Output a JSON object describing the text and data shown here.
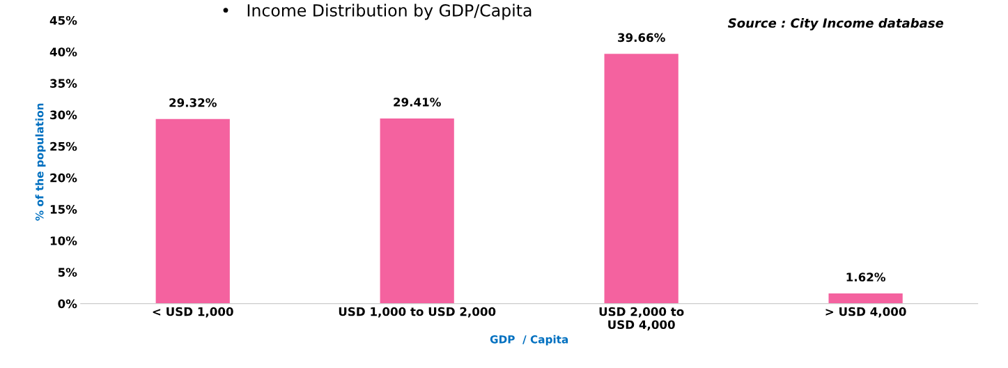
{
  "chart_data": {
    "type": "bar",
    "title": "•   Income Distribution by GDP/Capita",
    "xlabel": "GDP  / Capita",
    "ylabel": "% of the population",
    "categories": [
      "< USD 1,000",
      "USD 1,000 to USD 2,000",
      "USD 2,000 to\nUSD 4,000",
      "> USD 4,000"
    ],
    "values": [
      29.32,
      29.41,
      39.66,
      1.62
    ],
    "value_labels": [
      "29.32%",
      "29.41%",
      "39.66%",
      "1.62%"
    ],
    "color": "#f4629f",
    "ylim": [
      0,
      45
    ],
    "yticks": [
      {
        "value": 0,
        "label": "0%"
      },
      {
        "value": 5,
        "label": "5%"
      },
      {
        "value": 10,
        "label": "10%"
      },
      {
        "value": 15,
        "label": "15%"
      },
      {
        "value": 20,
        "label": "20%"
      },
      {
        "value": 25,
        "label": "25%"
      },
      {
        "value": 30,
        "label": "30%"
      },
      {
        "value": 35,
        "label": "35%"
      },
      {
        "value": 40,
        "label": "40%"
      },
      {
        "value": 45,
        "label": "45%"
      }
    ],
    "grid": false,
    "legend": false,
    "annotations": [
      "Source : City Income database"
    ]
  }
}
